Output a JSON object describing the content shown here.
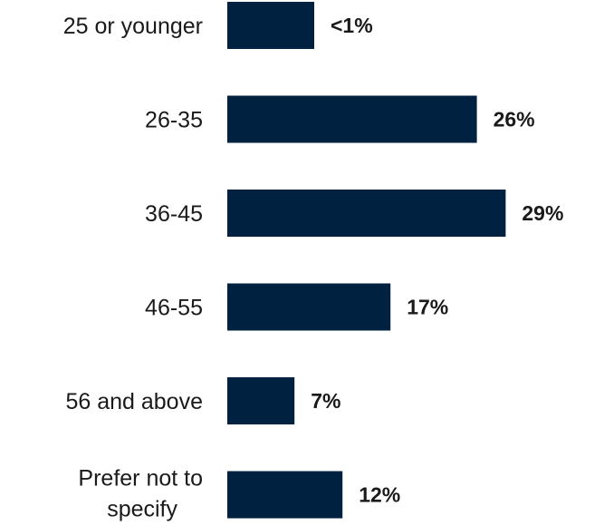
{
  "chart_data": {
    "type": "bar",
    "orientation": "horizontal",
    "categories": [
      "25 or younger",
      "26-35",
      "36-45",
      "46-55",
      "56 and above",
      "Prefer not to specify"
    ],
    "values": [
      0.9,
      26,
      29,
      17,
      7,
      12
    ],
    "value_labels": [
      "<1%",
      "26%",
      "29%",
      "17%",
      "7%",
      "12%"
    ],
    "bar_color": "#00213f",
    "grid": false,
    "legend": "none"
  }
}
